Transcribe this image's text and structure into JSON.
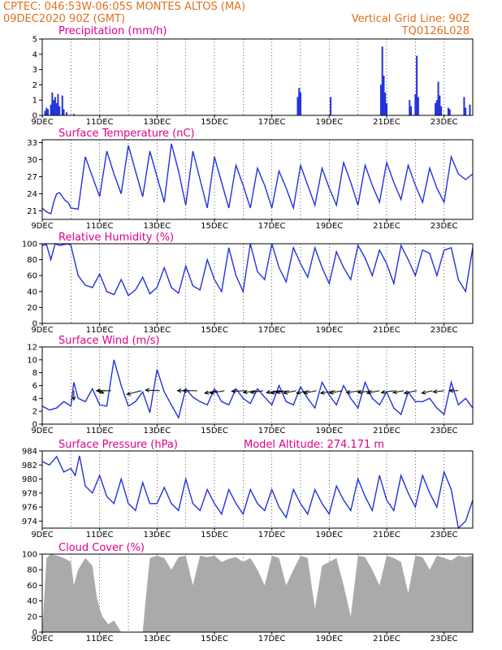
{
  "header": {
    "line1_left": "CPTEC:   046:53W-06:05S   MONTES ALTOS (MA)",
    "line2_left": "09DEC2020 90Z (GMT)",
    "line1_right": "Vertical Grid Line: 90Z",
    "line2_right": "TQ0126L028"
  },
  "colors": {
    "header": "#e07020",
    "title": "#e0008a",
    "line": "#2233dd",
    "bar": "#2233dd",
    "cloud": "#aaaaaa",
    "wind": "#000000"
  },
  "chart_data": [
    {
      "type": "bar",
      "title": "Precipitation (mm/h)",
      "x_labels": [
        "9DEC",
        "11DEC",
        "13DEC",
        "15DEC",
        "17DEC",
        "19DEC",
        "21DEC",
        "23DEC"
      ],
      "ylim": [
        0,
        5
      ],
      "yticks": [
        0,
        1,
        2,
        3,
        4,
        5
      ],
      "bars": [
        {
          "day": 0.1,
          "value": 0.3
        },
        {
          "day": 0.15,
          "value": 0.5
        },
        {
          "day": 0.2,
          "value": 0.4
        },
        {
          "day": 0.3,
          "value": 0.7
        },
        {
          "day": 0.35,
          "value": 1.5
        },
        {
          "day": 0.4,
          "value": 1.0
        },
        {
          "day": 0.45,
          "value": 1.2
        },
        {
          "day": 0.5,
          "value": 0.8
        },
        {
          "day": 0.55,
          "value": 1.4
        },
        {
          "day": 0.6,
          "value": 0.6
        },
        {
          "day": 0.7,
          "value": 1.3
        },
        {
          "day": 0.75,
          "value": 0.4
        },
        {
          "day": 0.85,
          "value": 0.2
        },
        {
          "day": 1.1,
          "value": 0.1
        },
        {
          "day": 8.9,
          "value": 1.2
        },
        {
          "day": 8.95,
          "value": 1.8
        },
        {
          "day": 9.0,
          "value": 1.5
        },
        {
          "day": 10.05,
          "value": 1.2
        },
        {
          "day": 11.8,
          "value": 2.0
        },
        {
          "day": 11.85,
          "value": 4.5
        },
        {
          "day": 11.9,
          "value": 2.6
        },
        {
          "day": 11.95,
          "value": 1.5
        },
        {
          "day": 12.0,
          "value": 0.8
        },
        {
          "day": 12.8,
          "value": 1.0
        },
        {
          "day": 12.85,
          "value": 0.6
        },
        {
          "day": 13.0,
          "value": 1.4
        },
        {
          "day": 13.05,
          "value": 3.9
        },
        {
          "day": 13.1,
          "value": 1.2
        },
        {
          "day": 13.7,
          "value": 0.8
        },
        {
          "day": 13.75,
          "value": 1.0
        },
        {
          "day": 13.8,
          "value": 2.2
        },
        {
          "day": 13.85,
          "value": 1.3
        },
        {
          "day": 13.9,
          "value": 0.6
        },
        {
          "day": 14.15,
          "value": 0.5
        },
        {
          "day": 14.2,
          "value": 0.4
        },
        {
          "day": 14.7,
          "value": 1.2
        },
        {
          "day": 14.75,
          "value": 0.5
        },
        {
          "day": 14.9,
          "value": 0.7
        }
      ]
    },
    {
      "type": "line",
      "title": "Surface Temperature (nC)",
      "x_labels": [
        "9DEC",
        "11DEC",
        "13DEC",
        "15DEC",
        "17DEC",
        "19DEC",
        "21DEC",
        "23DEC"
      ],
      "ylim": [
        19.5,
        33.5
      ],
      "yticks": [
        21,
        24,
        27,
        30,
        33
      ],
      "x": [
        0,
        0.15,
        0.3,
        0.4,
        0.5,
        0.6,
        0.7,
        0.8,
        0.9,
        1.0,
        1.25,
        1.5,
        1.75,
        2.0,
        2.25,
        2.5,
        2.75,
        3.0,
        3.25,
        3.5,
        3.75,
        4.0,
        4.25,
        4.5,
        4.75,
        5.0,
        5.25,
        5.5,
        5.75,
        6.0,
        6.25,
        6.5,
        6.75,
        7.0,
        7.25,
        7.5,
        7.75,
        8.0,
        8.25,
        8.5,
        8.75,
        9.0,
        9.25,
        9.5,
        9.75,
        10.0,
        10.25,
        10.5,
        10.75,
        11.0,
        11.25,
        11.5,
        11.75,
        12.0,
        12.25,
        12.5,
        12.75,
        13.0,
        13.25,
        13.5,
        13.75,
        14.0,
        14.25,
        14.5,
        14.75,
        15.0
      ],
      "y": [
        21.5,
        20.8,
        20.5,
        22.5,
        24.0,
        24.2,
        23.5,
        22.8,
        22.5,
        21.5,
        21.3,
        30.5,
        27.0,
        23.5,
        31.5,
        27.5,
        24.0,
        32.5,
        28.0,
        23.5,
        31.5,
        27.0,
        22.5,
        32.8,
        28.0,
        22.0,
        31.5,
        26.5,
        21.5,
        30.5,
        26.0,
        21.5,
        29.0,
        25.5,
        21.5,
        28.5,
        25.5,
        21.5,
        28.0,
        25.0,
        21.5,
        29.0,
        25.5,
        22.0,
        28.5,
        25.0,
        22.0,
        29.5,
        26.0,
        22.0,
        29.0,
        25.5,
        22.5,
        29.5,
        26.0,
        23.0,
        29.0,
        25.5,
        22.5,
        28.5,
        25.0,
        22.5,
        30.5,
        27.5,
        26.5,
        27.5
      ]
    },
    {
      "type": "line",
      "title": "Relative Humidity (%)",
      "x_labels": [
        "9DEC",
        "11DEC",
        "13DEC",
        "15DEC",
        "17DEC",
        "19DEC",
        "21DEC",
        "23DEC"
      ],
      "ylim": [
        0,
        100
      ],
      "yticks": [
        0,
        20,
        40,
        60,
        80,
        100
      ],
      "x": [
        0,
        0.15,
        0.3,
        0.45,
        0.6,
        0.75,
        0.9,
        1.0,
        1.25,
        1.5,
        1.75,
        2.0,
        2.25,
        2.5,
        2.75,
        3.0,
        3.25,
        3.5,
        3.75,
        4.0,
        4.25,
        4.5,
        4.75,
        5.0,
        5.25,
        5.5,
        5.75,
        6.0,
        6.25,
        6.5,
        6.75,
        7.0,
        7.25,
        7.5,
        7.75,
        8.0,
        8.25,
        8.5,
        8.75,
        9.0,
        9.25,
        9.5,
        9.75,
        10.0,
        10.25,
        10.5,
        10.75,
        11.0,
        11.25,
        11.5,
        11.75,
        12.0,
        12.25,
        12.5,
        12.75,
        13.0,
        13.25,
        13.5,
        13.75,
        14.0,
        14.25,
        14.5,
        14.75,
        15.0
      ],
      "y": [
        98,
        99,
        80,
        100,
        98,
        99,
        100,
        98,
        60,
        48,
        45,
        62,
        40,
        36,
        55,
        35,
        42,
        58,
        37,
        45,
        70,
        45,
        38,
        72,
        47,
        42,
        80,
        55,
        40,
        95,
        60,
        40,
        100,
        65,
        55,
        100,
        70,
        52,
        95,
        75,
        58,
        95,
        70,
        50,
        90,
        70,
        55,
        98,
        82,
        60,
        92,
        75,
        50,
        98,
        80,
        60,
        92,
        88,
        60,
        92,
        95,
        55,
        40,
        95
      ]
    },
    {
      "type": "line",
      "title": "Surface Wind (m/s)",
      "x_labels": [
        "9DEC",
        "11DEC",
        "13DEC",
        "15DEC",
        "17DEC",
        "19DEC",
        "21DEC",
        "23DEC"
      ],
      "ylim": [
        0,
        12
      ],
      "yticks": [
        0,
        2,
        4,
        6,
        8,
        10,
        12
      ],
      "x": [
        0,
        0.25,
        0.5,
        0.75,
        1.0,
        1.1,
        1.25,
        1.5,
        1.75,
        2.0,
        2.25,
        2.5,
        2.75,
        3.0,
        3.25,
        3.5,
        3.75,
        4.0,
        4.25,
        4.5,
        4.75,
        5.0,
        5.25,
        5.5,
        5.75,
        6.0,
        6.25,
        6.5,
        6.75,
        7.0,
        7.25,
        7.5,
        7.75,
        8.0,
        8.25,
        8.5,
        8.75,
        9.0,
        9.25,
        9.5,
        9.75,
        10.0,
        10.25,
        10.5,
        10.75,
        11.0,
        11.25,
        11.5,
        11.75,
        12.0,
        12.25,
        12.5,
        12.75,
        13.0,
        13.25,
        13.5,
        13.75,
        14.0,
        14.25,
        14.5,
        14.75,
        15.0
      ],
      "y": [
        2.8,
        2.2,
        2.5,
        3.5,
        2.8,
        6.5,
        4.0,
        3.5,
        5.5,
        3.0,
        2.8,
        10.0,
        6.0,
        2.8,
        3.5,
        5.0,
        1.8,
        8.5,
        5.0,
        3.0,
        1.0,
        5.5,
        4.2,
        3.5,
        3.0,
        5.5,
        3.5,
        3.0,
        5.5,
        4.0,
        3.2,
        5.5,
        4.2,
        3.0,
        6.0,
        3.5,
        3.0,
        5.8,
        4.0,
        2.5,
        6.5,
        4.5,
        3.0,
        6.0,
        4.0,
        2.5,
        6.5,
        4.0,
        3.0,
        5.0,
        2.5,
        1.5,
        5.0,
        3.5,
        3.5,
        4.0,
        2.5,
        1.5,
        6.5,
        3.0,
        4.0,
        2.5
      ],
      "arrows": [
        {
          "day": 1.1,
          "u": 0,
          "v": -1.5
        },
        {
          "day": 1.95,
          "u": 0.3,
          "v": -0.4
        },
        {
          "day": 2.2,
          "u": -0.5,
          "v": 0
        },
        {
          "day": 2.4,
          "u": -0.8,
          "v": 0
        },
        {
          "day": 3.45,
          "u": -0.8,
          "v": -0.6
        },
        {
          "day": 4.1,
          "u": -0.8,
          "v": 0.1
        },
        {
          "day": 5.15,
          "u": -0.7,
          "v": 0
        },
        {
          "day": 5.4,
          "u": -0.8,
          "v": 0
        },
        {
          "day": 6.1,
          "u": -0.7,
          "v": -0.4
        },
        {
          "day": 6.35,
          "u": -0.8,
          "v": -0.4
        },
        {
          "day": 7.1,
          "u": -0.8,
          "v": -0.1
        },
        {
          "day": 7.45,
          "u": -0.7,
          "v": -0.3
        },
        {
          "day": 7.7,
          "u": -0.7,
          "v": -0.3
        },
        {
          "day": 8.25,
          "u": -0.7,
          "v": -0.3
        },
        {
          "day": 8.4,
          "u": -0.7,
          "v": -0.4
        },
        {
          "day": 8.6,
          "u": -0.7,
          "v": -0.3
        },
        {
          "day": 8.85,
          "u": -0.7,
          "v": -0.4
        },
        {
          "day": 9.3,
          "u": -0.7,
          "v": -0.4
        },
        {
          "day": 9.55,
          "u": -0.7,
          "v": -0.4
        },
        {
          "day": 10.2,
          "u": -0.8,
          "v": -0.4
        },
        {
          "day": 10.45,
          "u": -0.7,
          "v": -0.4
        },
        {
          "day": 11.1,
          "u": -0.8,
          "v": -0.3
        },
        {
          "day": 11.5,
          "u": -0.8,
          "v": -0.3
        },
        {
          "day": 11.75,
          "u": -0.7,
          "v": -0.4
        },
        {
          "day": 12.25,
          "u": -0.7,
          "v": -0.3
        },
        {
          "day": 12.6,
          "u": -0.6,
          "v": -0.3
        },
        {
          "day": 13.05,
          "u": -0.7,
          "v": -0.4
        },
        {
          "day": 13.6,
          "u": -0.6,
          "v": -0.4
        },
        {
          "day": 14.0,
          "u": -0.6,
          "v": -0.2
        },
        {
          "day": 14.5,
          "u": -0.5,
          "v": 0
        }
      ]
    },
    {
      "type": "line",
      "title": "Surface Pressure (hPa)",
      "annotation": "Model Altitude: 274.171  m",
      "x_labels": [
        "9DEC",
        "11DEC",
        "13DEC",
        "15DEC",
        "17DEC",
        "19DEC",
        "21DEC",
        "23DEC"
      ],
      "ylim": [
        973,
        984
      ],
      "yticks": [
        974,
        976,
        978,
        980,
        982,
        984
      ],
      "x": [
        0,
        0.25,
        0.5,
        0.75,
        1.0,
        1.15,
        1.3,
        1.5,
        1.75,
        2.0,
        2.25,
        2.5,
        2.75,
        3.0,
        3.25,
        3.5,
        3.75,
        4.0,
        4.25,
        4.5,
        4.75,
        5.0,
        5.25,
        5.5,
        5.75,
        6.0,
        6.25,
        6.5,
        6.75,
        7.0,
        7.25,
        7.5,
        7.75,
        8.0,
        8.25,
        8.5,
        8.75,
        9.0,
        9.25,
        9.5,
        9.75,
        10.0,
        10.25,
        10.5,
        10.75,
        11.0,
        11.25,
        11.5,
        11.75,
        12.0,
        12.25,
        12.5,
        12.75,
        13.0,
        13.25,
        13.5,
        13.75,
        14.0,
        14.25,
        14.5,
        14.75,
        15.0
      ],
      "y": [
        982.5,
        982.0,
        983.2,
        981.0,
        981.5,
        980.5,
        983.3,
        979.0,
        978.0,
        980.5,
        977.5,
        976.5,
        980.0,
        976.5,
        975.5,
        979.5,
        976.5,
        976.5,
        978.8,
        976.5,
        975.5,
        980.0,
        976.5,
        975.5,
        978.5,
        976.5,
        975.0,
        978.5,
        976.5,
        975.0,
        978.5,
        976.5,
        975.5,
        978.5,
        976.0,
        974.5,
        978.5,
        976.5,
        975.0,
        978.5,
        976.5,
        975.0,
        979.0,
        977.0,
        975.5,
        980.0,
        977.5,
        975.5,
        980.5,
        977.0,
        975.5,
        980.5,
        978.0,
        976.0,
        980.5,
        978.0,
        976.0,
        981.0,
        978.5,
        973.0,
        974.0,
        977.0
      ]
    },
    {
      "type": "area",
      "title": "Cloud Cover (%)",
      "x_labels": [
        "9DEC",
        "11DEC",
        "13DEC",
        "15DEC",
        "17DEC",
        "19DEC",
        "21DEC",
        "23DEC"
      ],
      "ylim": [
        0,
        100
      ],
      "yticks": [
        0,
        20,
        40,
        60,
        80,
        100
      ],
      "x": [
        0,
        0.15,
        0.3,
        0.5,
        0.75,
        1.0,
        1.1,
        1.25,
        1.5,
        1.75,
        1.9,
        2.0,
        2.1,
        2.3,
        2.5,
        2.75,
        3.0,
        3.25,
        3.5,
        3.6,
        3.75,
        4.0,
        4.25,
        4.5,
        4.75,
        5.0,
        5.25,
        5.5,
        5.75,
        6.0,
        6.25,
        6.5,
        6.75,
        7.0,
        7.25,
        7.5,
        7.75,
        8.0,
        8.25,
        8.5,
        8.75,
        9.0,
        9.25,
        9.5,
        9.75,
        10.0,
        10.25,
        10.5,
        10.75,
        11.0,
        11.25,
        11.5,
        11.75,
        12.0,
        12.25,
        12.5,
        12.75,
        13.0,
        13.25,
        13.5,
        13.75,
        14.0,
        14.25,
        14.5,
        14.75,
        15.0
      ],
      "y": [
        0,
        95,
        100,
        98,
        95,
        90,
        60,
        80,
        95,
        85,
        45,
        30,
        20,
        10,
        15,
        0,
        0,
        0,
        0,
        40,
        95,
        98,
        95,
        80,
        96,
        98,
        60,
        98,
        96,
        98,
        90,
        94,
        96,
        90,
        95,
        80,
        60,
        98,
        95,
        60,
        80,
        98,
        95,
        30,
        85,
        90,
        95,
        60,
        20,
        98,
        96,
        80,
        60,
        98,
        95,
        90,
        50,
        98,
        96,
        80,
        98,
        95,
        92,
        98,
        96,
        98
      ]
    }
  ]
}
